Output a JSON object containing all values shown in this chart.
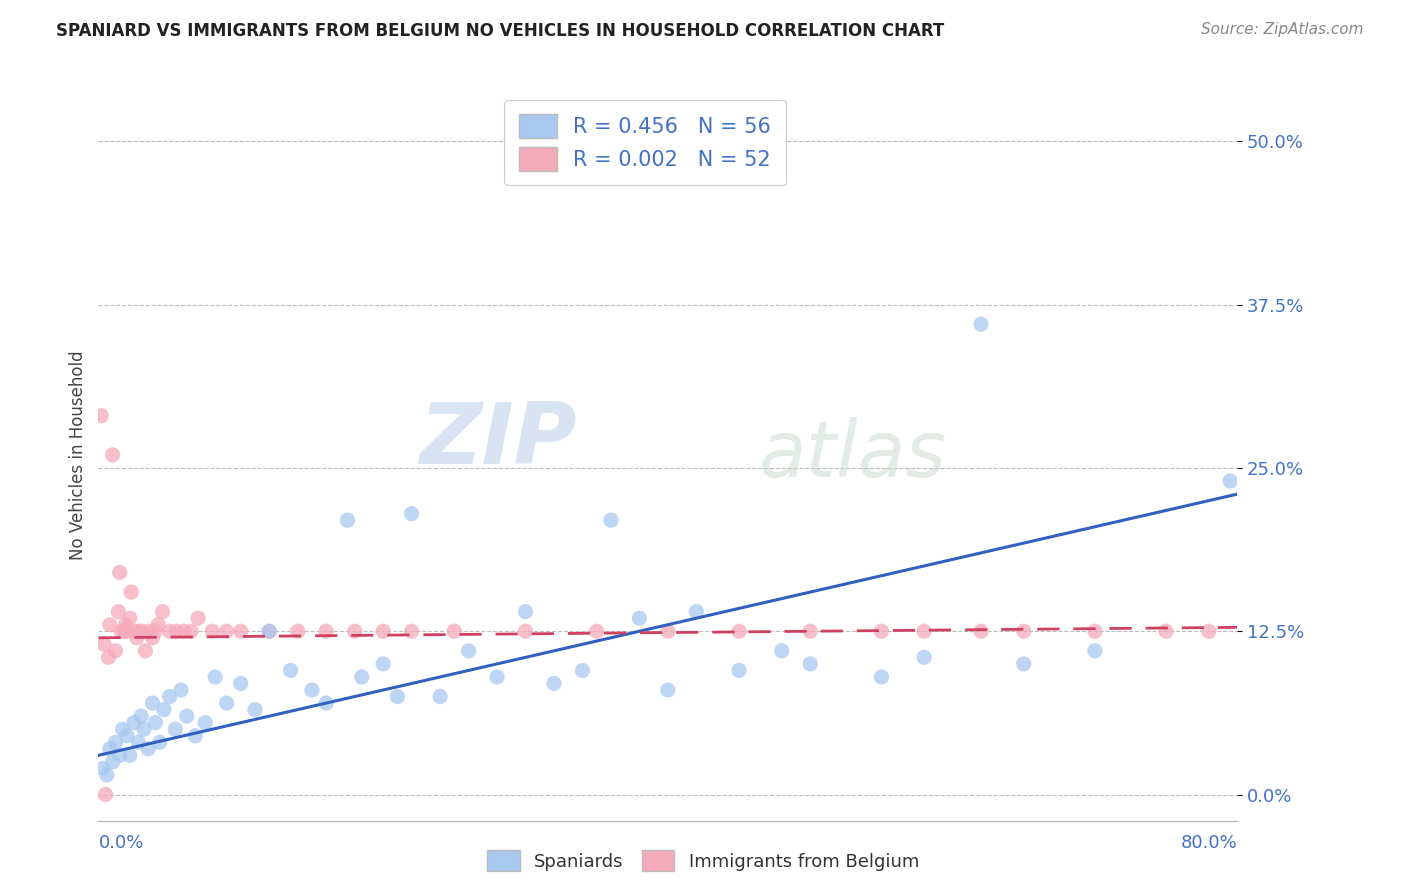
{
  "title": "SPANIARD VS IMMIGRANTS FROM BELGIUM NO VEHICLES IN HOUSEHOLD CORRELATION CHART",
  "source_text": "Source: ZipAtlas.com",
  "ylabel": "No Vehicles in Household",
  "ytick_labels": [
    "0.0%",
    "12.5%",
    "25.0%",
    "37.5%",
    "50.0%"
  ],
  "ytick_values": [
    0.0,
    12.5,
    25.0,
    37.5,
    50.0
  ],
  "xlim": [
    0.0,
    80.0
  ],
  "ylim": [
    -2.0,
    54.0
  ],
  "blue_color": "#A8C8F0",
  "pink_color": "#F5AABC",
  "blue_line_color": "#3060C0",
  "pink_line_color": "#D04060",
  "watermark_zip": "ZIP",
  "watermark_atlas": "atlas",
  "spaniards_x": [
    0.3,
    0.6,
    0.8,
    1.0,
    1.2,
    1.5,
    1.7,
    2.0,
    2.2,
    2.5,
    2.8,
    3.0,
    3.2,
    3.5,
    3.8,
    4.0,
    4.3,
    4.6,
    5.0,
    5.4,
    5.8,
    6.2,
    6.8,
    7.5,
    8.2,
    9.0,
    10.0,
    11.0,
    12.0,
    13.5,
    15.0,
    16.0,
    17.5,
    18.5,
    20.0,
    21.0,
    22.0,
    24.0,
    26.0,
    28.0,
    30.0,
    32.0,
    34.0,
    36.0,
    38.0,
    40.0,
    42.0,
    45.0,
    48.0,
    50.0,
    55.0,
    58.0,
    62.0,
    65.0,
    70.0,
    79.5
  ],
  "spaniards_y": [
    2.0,
    1.5,
    3.5,
    2.5,
    4.0,
    3.0,
    5.0,
    4.5,
    3.0,
    5.5,
    4.0,
    6.0,
    5.0,
    3.5,
    7.0,
    5.5,
    4.0,
    6.5,
    7.5,
    5.0,
    8.0,
    6.0,
    4.5,
    5.5,
    9.0,
    7.0,
    8.5,
    6.5,
    12.5,
    9.5,
    8.0,
    7.0,
    21.0,
    9.0,
    10.0,
    7.5,
    21.5,
    7.5,
    11.0,
    9.0,
    14.0,
    8.5,
    9.5,
    21.0,
    13.5,
    8.0,
    14.0,
    9.5,
    11.0,
    10.0,
    9.0,
    10.5,
    36.0,
    10.0,
    11.0,
    24.0
  ],
  "immigrants_x": [
    0.2,
    0.4,
    0.5,
    0.7,
    0.8,
    1.0,
    1.2,
    1.4,
    1.6,
    1.8,
    2.0,
    2.2,
    2.5,
    2.8,
    3.0,
    3.5,
    4.0,
    4.5,
    5.0,
    5.5,
    6.0,
    6.5,
    7.0,
    8.0,
    9.0,
    10.0,
    12.0,
    14.0,
    16.0,
    18.0,
    20.0,
    22.0,
    25.0,
    30.0,
    35.0,
    40.0,
    45.0,
    50.0,
    55.0,
    58.0,
    62.0,
    65.0,
    70.0,
    75.0,
    78.0,
    1.5,
    1.9,
    2.3,
    2.7,
    3.3,
    3.8,
    4.2
  ],
  "immigrants_y": [
    29.0,
    11.5,
    0.0,
    10.5,
    13.0,
    26.0,
    11.0,
    14.0,
    12.5,
    12.5,
    12.5,
    13.5,
    12.5,
    12.5,
    12.5,
    12.5,
    12.5,
    14.0,
    12.5,
    12.5,
    12.5,
    12.5,
    13.5,
    12.5,
    12.5,
    12.5,
    12.5,
    12.5,
    12.5,
    12.5,
    12.5,
    12.5,
    12.5,
    12.5,
    12.5,
    12.5,
    12.5,
    12.5,
    12.5,
    12.5,
    12.5,
    12.5,
    12.5,
    12.5,
    12.5,
    17.0,
    13.0,
    15.5,
    12.0,
    11.0,
    12.0,
    13.0
  ],
  "blue_line_x": [
    0.0,
    80.0
  ],
  "blue_line_y_start": 3.0,
  "blue_line_y_end": 23.0,
  "pink_line_x": [
    0.0,
    80.0
  ],
  "pink_line_y_start": 12.0,
  "pink_line_y_end": 12.8
}
